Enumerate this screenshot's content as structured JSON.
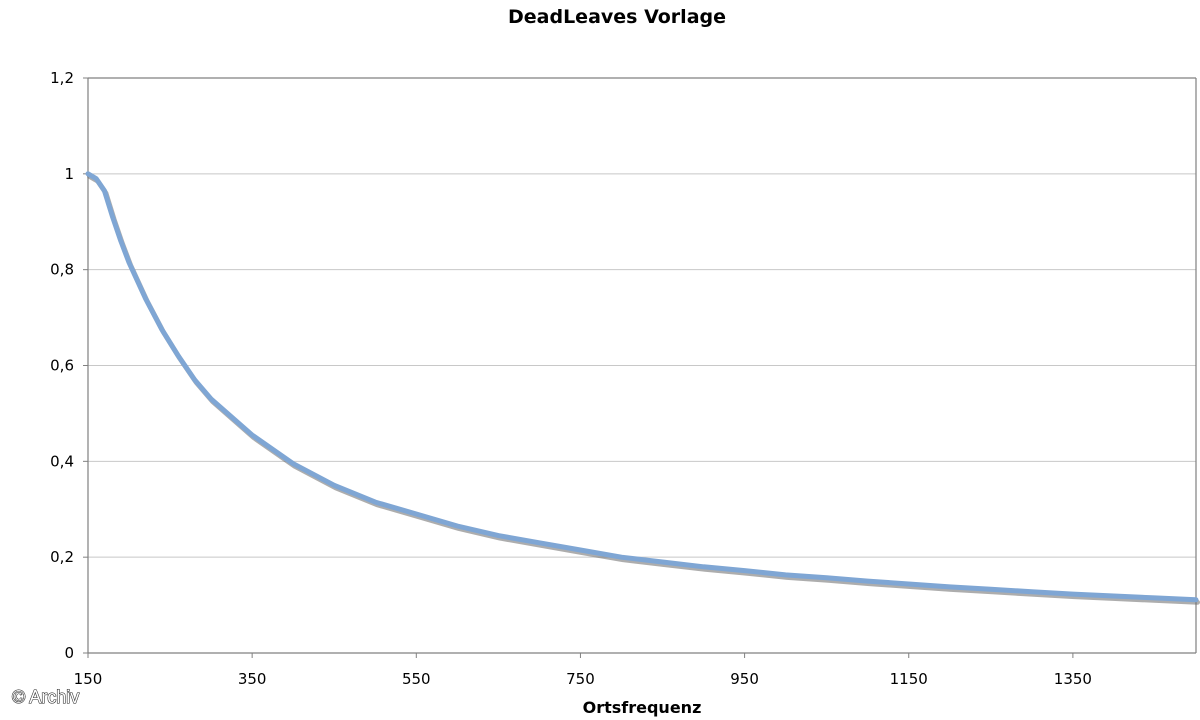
{
  "chart_data": {
    "type": "line",
    "title": "DeadLeaves Vorlage",
    "xlabel": "Ortsfrequenz",
    "ylabel": "",
    "xlim": [
      150,
      1500
    ],
    "ylim": [
      0,
      1.2
    ],
    "x_ticks": [
      150,
      350,
      550,
      750,
      950,
      1150,
      1350
    ],
    "x_tick_labels": [
      "150",
      "350",
      "550",
      "750",
      "950",
      "1150",
      "1350"
    ],
    "y_ticks": [
      0,
      0.2,
      0.4,
      0.6,
      0.8,
      1,
      1.2
    ],
    "y_tick_labels": [
      "0",
      "0,2",
      "0,4",
      "0,6",
      "0,8",
      "1",
      "1,2"
    ],
    "grid": "horizontal",
    "legend": "none",
    "colors": {
      "line": "#7fa6d4",
      "line_shadow": "#6a6a6a",
      "grid": "#c8c8c8",
      "axis": "#808080"
    },
    "series": [
      {
        "x": [
          150,
          160,
          170,
          180,
          190,
          200,
          220,
          240,
          260,
          280,
          300,
          350,
          400,
          450,
          500,
          550,
          600,
          650,
          700,
          750,
          800,
          850,
          900,
          950,
          1000,
          1050,
          1100,
          1150,
          1200,
          1250,
          1300,
          1350,
          1400,
          1450,
          1500
        ],
        "y": [
          1.0,
          0.99,
          0.965,
          0.91,
          0.86,
          0.815,
          0.74,
          0.675,
          0.62,
          0.57,
          0.53,
          0.455,
          0.395,
          0.35,
          0.315,
          0.29,
          0.265,
          0.245,
          0.23,
          0.215,
          0.2,
          0.19,
          0.18,
          0.172,
          0.163,
          0.157,
          0.15,
          0.144,
          0.138,
          0.133,
          0.128,
          0.123,
          0.119,
          0.115,
          0.111
        ]
      }
    ]
  },
  "watermark": {
    "text": "© Archiv"
  }
}
